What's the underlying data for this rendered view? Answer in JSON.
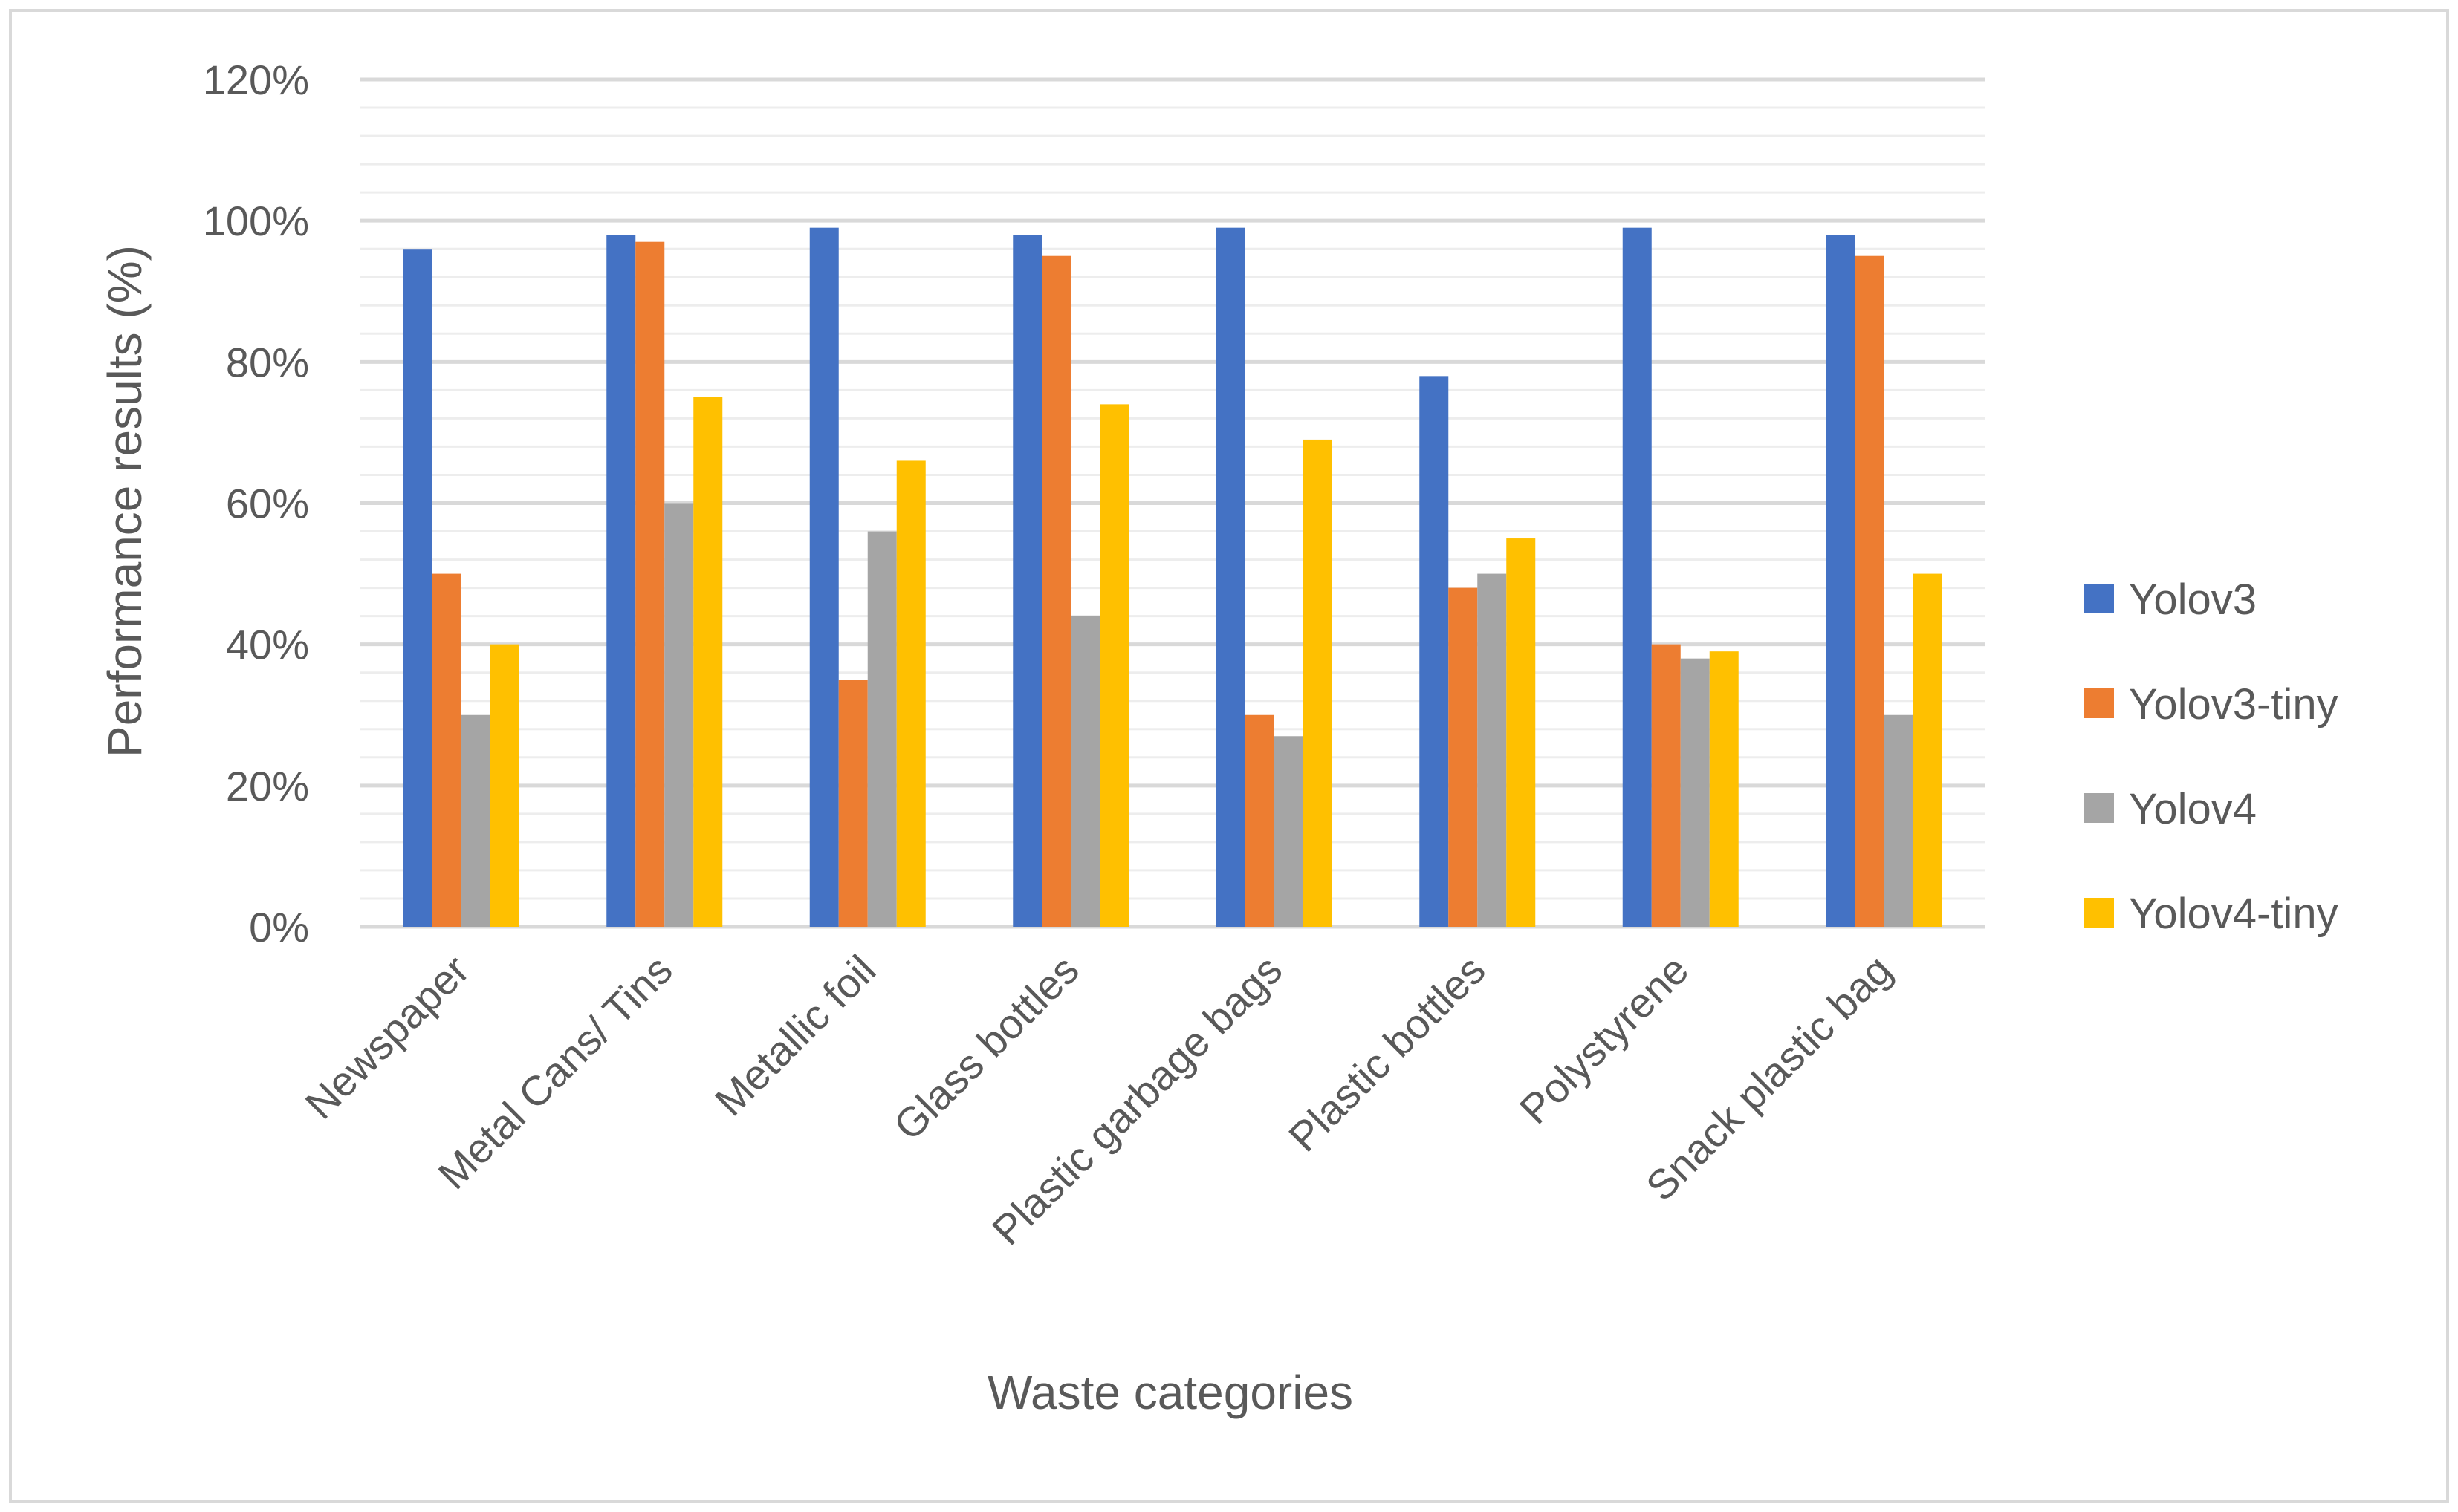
{
  "chart_data": {
    "type": "bar",
    "title": "",
    "xlabel": "Waste categories",
    "ylabel": "Performance results (%)",
    "ylim": [
      0,
      120
    ],
    "ytick_step": 20,
    "ytick_suffix": "%",
    "minor_grid_step": 4,
    "grid": true,
    "legend_position": "right",
    "categories": [
      "Newspaper",
      "Metal Cans/ Tins",
      "Metallic foil",
      "Glass bottles",
      "Plastic garbage bags",
      "Plastic bottles",
      "Polystyrene",
      "Snack plastic bag"
    ],
    "series": [
      {
        "name": "Yolov3",
        "color": "#4472C4",
        "values": [
          96,
          98,
          99,
          98,
          99,
          78,
          99,
          98
        ]
      },
      {
        "name": "Yolov3-tiny",
        "color": "#ED7D31",
        "values": [
          50,
          97,
          35,
          95,
          30,
          48,
          40,
          95
        ]
      },
      {
        "name": "Yolov4",
        "color": "#A5A5A5",
        "values": [
          30,
          60,
          56,
          44,
          27,
          50,
          38,
          30
        ]
      },
      {
        "name": "Yolov4-tiny",
        "color": "#FFC000",
        "values": [
          40,
          75,
          66,
          74,
          69,
          55,
          39,
          50
        ]
      }
    ]
  }
}
